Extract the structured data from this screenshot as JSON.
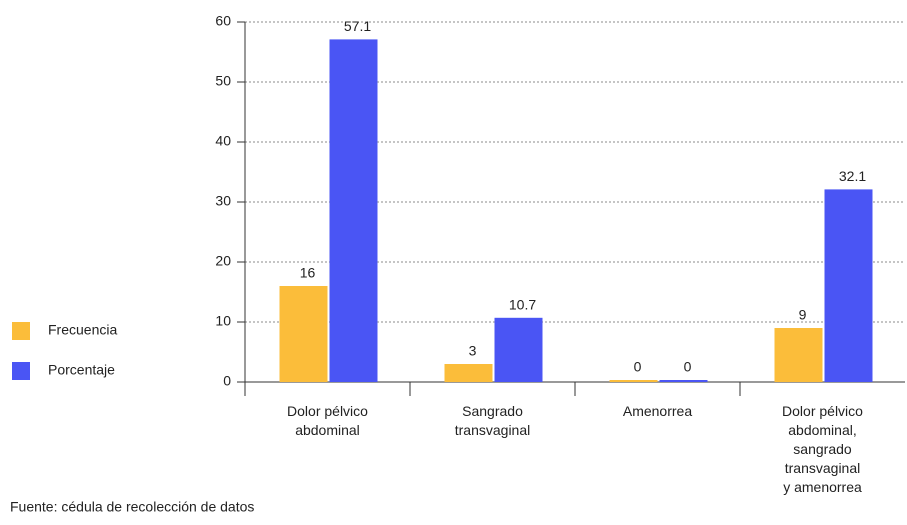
{
  "chart_data": {
    "type": "bar",
    "categories": [
      "Dolor pélvico abdominal",
      "Sangrado transvaginal",
      "Amenorrea",
      "Dolor pélvico abdominal, sangrado transvaginal y amenorrea"
    ],
    "series": [
      {
        "name": "Frecuencia",
        "color": "#fbbd3a",
        "values": [
          16,
          3,
          0,
          9
        ]
      },
      {
        "name": "Porcentaje",
        "color": "#4a55f4",
        "values": [
          57.1,
          10.7,
          0,
          32.1
        ]
      }
    ],
    "ylim": [
      0,
      60
    ],
    "yticks": [
      0,
      10,
      20,
      30,
      40,
      50,
      60
    ],
    "grid": true,
    "legend": "left",
    "source": "Fuente: cédula de recolección de datos"
  }
}
